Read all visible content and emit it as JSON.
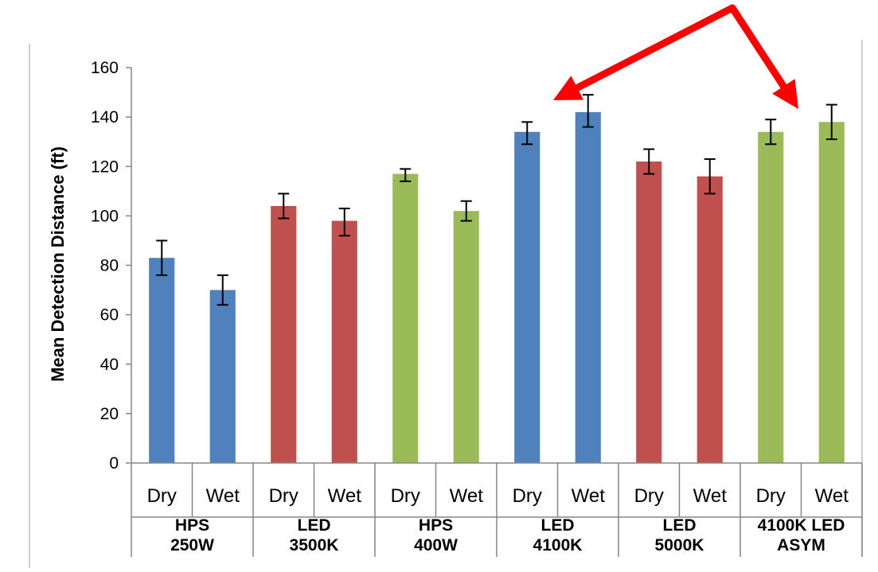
{
  "chart_data": {
    "type": "bar",
    "title": "",
    "xlabel": "",
    "ylabel": "Mean Detection Distance  (ft)",
    "ylim": [
      0,
      160
    ],
    "yticks": [
      0,
      20,
      40,
      60,
      80,
      100,
      120,
      140,
      160
    ],
    "grid": false,
    "legend": "none",
    "groups": [
      {
        "label_line1": "HPS",
        "label_line2": "250W",
        "color": "#4f81bd"
      },
      {
        "label_line1": "LED",
        "label_line2": "3500K",
        "color": "#c0504d"
      },
      {
        "label_line1": "HPS",
        "label_line2": "400W",
        "color": "#9bbb59"
      },
      {
        "label_line1": "LED",
        "label_line2": "4100K",
        "color": "#4f81bd"
      },
      {
        "label_line1": "LED",
        "label_line2": "5000K",
        "color": "#c0504d"
      },
      {
        "label_line1": "4100K LED",
        "label_line2": "ASYM",
        "color": "#9bbb59"
      }
    ],
    "conditions": [
      "Dry",
      "Wet"
    ],
    "bars": [
      {
        "group": 0,
        "condition": "Dry",
        "value": 83,
        "err_low": 76,
        "err_high": 90
      },
      {
        "group": 0,
        "condition": "Wet",
        "value": 70,
        "err_low": 64,
        "err_high": 76
      },
      {
        "group": 1,
        "condition": "Dry",
        "value": 104,
        "err_low": 99,
        "err_high": 109
      },
      {
        "group": 1,
        "condition": "Wet",
        "value": 98,
        "err_low": 92,
        "err_high": 103
      },
      {
        "group": 2,
        "condition": "Dry",
        "value": 117,
        "err_low": 114,
        "err_high": 119
      },
      {
        "group": 2,
        "condition": "Wet",
        "value": 102,
        "err_low": 98,
        "err_high": 106
      },
      {
        "group": 3,
        "condition": "Dry",
        "value": 134,
        "err_low": 129,
        "err_high": 138
      },
      {
        "group": 3,
        "condition": "Wet",
        "value": 142,
        "err_low": 136,
        "err_high": 149
      },
      {
        "group": 4,
        "condition": "Dry",
        "value": 122,
        "err_low": 117,
        "err_high": 127
      },
      {
        "group": 4,
        "condition": "Wet",
        "value": 116,
        "err_low": 109,
        "err_high": 123
      },
      {
        "group": 5,
        "condition": "Dry",
        "value": 134,
        "err_low": 129,
        "err_high": 139
      },
      {
        "group": 5,
        "condition": "Wet",
        "value": 138,
        "err_low": 131,
        "err_high": 145
      }
    ],
    "annotations": [
      {
        "type": "arrows",
        "color": "#ff0000",
        "targets": [
          "LED 4100K",
          "4100K LED ASYM"
        ]
      }
    ]
  }
}
